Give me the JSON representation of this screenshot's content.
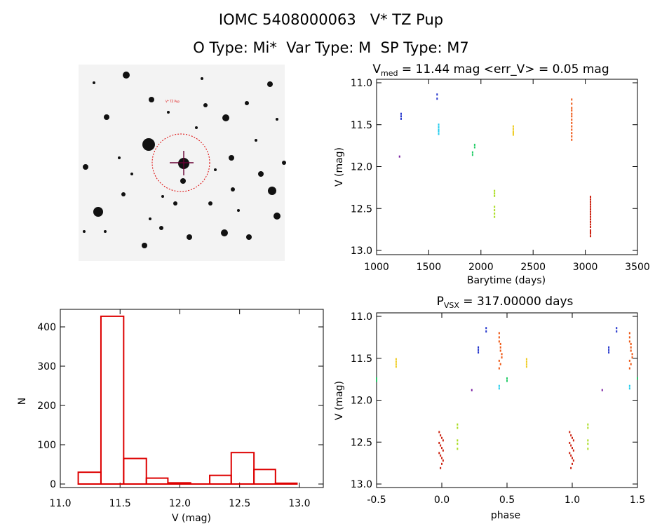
{
  "header": {
    "line1": "IOMC 5408000063   V* TZ Pup",
    "line2": "O Type: Mi*  Var Type: M  SP Type: M7"
  },
  "chart_data": [
    {
      "type": "image",
      "description_label": "V* TZ Pup"
    },
    {
      "type": "scatter",
      "title_main": "V",
      "title_sub": "med",
      "title_rest": " = 11.44 mag <err_V> = 0.05 mag",
      "xlabel": "Barytime (days)",
      "ylabel": "V (mag)",
      "xlim": [
        1000,
        3500
      ],
      "ylim": [
        13.0,
        11.0
      ],
      "xticks": [
        1000,
        1500,
        2000,
        2500,
        3000,
        3500
      ],
      "yticks": [
        11.0,
        11.5,
        12.0,
        12.5,
        13.0
      ],
      "series": [
        {
          "color": "#7a1fa2",
          "x": [
            1220
          ],
          "y": [
            11.88
          ]
        },
        {
          "color": "#2233cc",
          "x": [
            1235,
            1235,
            1235,
            1580,
            1580
          ],
          "y": [
            11.37,
            11.4,
            11.43,
            11.14,
            11.19
          ]
        },
        {
          "color": "#22ccee",
          "x": [
            1595,
            1595,
            1595,
            1595,
            1595
          ],
          "y": [
            11.5,
            11.53,
            11.56,
            11.58,
            11.61
          ]
        },
        {
          "color": "#22cc66",
          "x": [
            1920,
            1920,
            1940,
            1940
          ],
          "y": [
            11.83,
            11.86,
            11.74,
            11.77
          ]
        },
        {
          "color": "#aadd22",
          "x": [
            2130,
            2130,
            2130,
            2130,
            2130,
            2130,
            2130
          ],
          "y": [
            12.29,
            12.32,
            12.35,
            12.48,
            12.52,
            12.56,
            12.6
          ]
        },
        {
          "color": "#eecc22",
          "x": [
            2310,
            2310,
            2310,
            2310,
            2310
          ],
          "y": [
            11.52,
            11.55,
            11.58,
            11.6,
            11.62
          ]
        },
        {
          "color": "#ee5511",
          "x": [
            2870,
            2870,
            2870,
            2870,
            2870,
            2870,
            2870,
            2870,
            2870,
            2870,
            2870,
            2870,
            2870
          ],
          "y": [
            11.2,
            11.25,
            11.3,
            11.33,
            11.37,
            11.4,
            11.44,
            11.48,
            11.52,
            11.56,
            11.6,
            11.64,
            11.68
          ]
        },
        {
          "color": "#cc2211",
          "x": [
            3050,
            3050,
            3050,
            3050,
            3050,
            3050,
            3050,
            3050,
            3050,
            3050,
            3050,
            3050,
            3050,
            3050,
            3050,
            3050,
            3050
          ],
          "y": [
            12.36,
            12.39,
            12.42,
            12.45,
            12.48,
            12.51,
            12.54,
            12.57,
            12.6,
            12.63,
            12.66,
            12.69,
            12.72,
            12.76,
            12.8,
            12.83,
            12.78
          ]
        }
      ]
    },
    {
      "type": "histogram",
      "xlabel": "V (mag)",
      "ylabel": "N",
      "xlim": [
        11.0,
        13.2
      ],
      "ylim": [
        0,
        440
      ],
      "xticks": [
        11.0,
        11.5,
        12.0,
        12.5,
        13.0
      ],
      "yticks": [
        0,
        100,
        200,
        300,
        400
      ],
      "bins": [
        {
          "x0": 11.15,
          "x1": 11.34,
          "n": 30
        },
        {
          "x0": 11.34,
          "x1": 11.53,
          "n": 427
        },
        {
          "x0": 11.53,
          "x1": 11.72,
          "n": 65
        },
        {
          "x0": 11.72,
          "x1": 11.9,
          "n": 15
        },
        {
          "x0": 11.9,
          "x1": 12.09,
          "n": 3
        },
        {
          "x0": 12.09,
          "x1": 12.25,
          "n": 0
        },
        {
          "x0": 12.25,
          "x1": 12.43,
          "n": 22
        },
        {
          "x0": 12.43,
          "x1": 12.62,
          "n": 80
        },
        {
          "x0": 12.62,
          "x1": 12.8,
          "n": 37
        },
        {
          "x0": 12.8,
          "x1": 12.98,
          "n": 2
        }
      ],
      "color": "#dd0000"
    },
    {
      "type": "scatter",
      "title_main": "P",
      "title_sub": "VSX",
      "title_rest": " = 317.00000 days",
      "xlabel": "phase",
      "ylabel": "V (mag)",
      "xlim": [
        -0.5,
        1.5
      ],
      "ylim": [
        13.0,
        11.0
      ],
      "xticks": [
        -0.5,
        0.0,
        0.5,
        1.0,
        1.5
      ],
      "yticks": [
        11.0,
        11.5,
        12.0,
        12.5,
        13.0
      ],
      "series": [
        {
          "color": "#7a1fa2",
          "x": [
            0.23,
            1.23
          ],
          "y": [
            11.88,
            11.88
          ]
        },
        {
          "color": "#2233cc",
          "x": [
            0.28,
            0.28,
            0.28,
            1.28,
            1.28,
            1.28,
            0.34,
            0.34,
            1.34,
            1.34
          ],
          "y": [
            11.37,
            11.4,
            11.43,
            11.37,
            11.4,
            11.43,
            11.14,
            11.18,
            11.14,
            11.18
          ]
        },
        {
          "color": "#22ccee",
          "x": [
            0.44,
            0.44,
            1.44,
            1.44
          ],
          "y": [
            11.83,
            11.86,
            11.83,
            11.86
          ]
        },
        {
          "color": "#22cc66",
          "x": [
            0.5,
            0.5,
            -0.5,
            -0.5,
            1.5
          ],
          "y": [
            11.74,
            11.77,
            11.74,
            11.77,
            11.74
          ]
        },
        {
          "color": "#aadd22",
          "x": [
            0.12,
            0.12,
            0.12,
            0.12,
            0.12,
            1.12,
            1.12,
            1.12,
            1.12,
            1.12
          ],
          "y": [
            12.29,
            12.33,
            12.48,
            12.52,
            12.58,
            12.29,
            12.33,
            12.48,
            12.52,
            12.58
          ]
        },
        {
          "color": "#eecc22",
          "x": [
            -0.35,
            -0.35,
            -0.35,
            -0.35,
            0.65,
            0.65,
            0.65,
            0.65
          ],
          "y": [
            11.51,
            11.54,
            11.57,
            11.6,
            11.51,
            11.54,
            11.57,
            11.6
          ]
        },
        {
          "color": "#ee5511",
          "x": [
            0.44,
            0.44,
            0.44,
            0.45,
            0.45,
            0.45,
            0.46,
            0.46,
            0.44,
            0.45,
            0.44,
            1.44,
            1.44,
            1.44,
            1.45,
            1.45,
            1.45,
            1.46,
            1.46,
            1.44,
            1.45,
            1.44
          ],
          "y": [
            11.2,
            11.25,
            11.3,
            11.33,
            11.37,
            11.41,
            11.45,
            11.49,
            11.53,
            11.57,
            11.62,
            11.2,
            11.25,
            11.3,
            11.33,
            11.37,
            11.41,
            11.45,
            11.49,
            11.53,
            11.57,
            11.62
          ]
        },
        {
          "color": "#cc2211",
          "x": [
            -0.02,
            -0.01,
            0.0,
            0.01,
            -0.02,
            -0.01,
            0.0,
            0.01,
            -0.02,
            -0.01,
            0.0,
            0.01,
            0.0,
            -0.01,
            0.98,
            0.99,
            1.0,
            1.01,
            0.98,
            0.99,
            1.0,
            1.01,
            0.98,
            0.99,
            1.0,
            1.01,
            1.0,
            0.99
          ],
          "y": [
            12.38,
            12.42,
            12.45,
            12.48,
            12.51,
            12.54,
            12.57,
            12.6,
            12.63,
            12.66,
            12.69,
            12.72,
            12.76,
            12.81,
            12.38,
            12.42,
            12.45,
            12.48,
            12.51,
            12.54,
            12.57,
            12.6,
            12.63,
            12.66,
            12.69,
            12.72,
            12.76,
            12.81
          ]
        }
      ]
    }
  ]
}
